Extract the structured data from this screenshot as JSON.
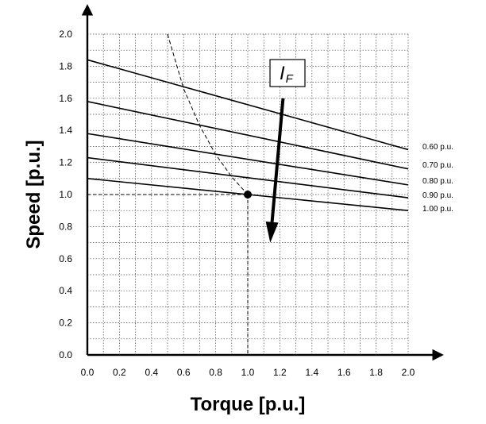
{
  "chart_data": {
    "type": "line",
    "title": "",
    "xlabel": "Torque [p.u.]",
    "ylabel": "Speed [p.u.]",
    "xlim": [
      0,
      2.0
    ],
    "ylim": [
      0,
      2.0
    ],
    "x_ticks": [
      "0.0",
      "0.2",
      "0.4",
      "0.6",
      "0.8",
      "1.0",
      "1.2",
      "1.4",
      "1.6",
      "1.8",
      "2.0"
    ],
    "y_ticks": [
      "0.0",
      "0.2",
      "0.4",
      "0.6",
      "0.8",
      "1.0",
      "1.2",
      "1.4",
      "1.6",
      "1.8",
      "2.0"
    ],
    "grid": true,
    "series": [
      {
        "name": "0.60 p.u.",
        "x": [
          0,
          2.0
        ],
        "y": [
          1.84,
          1.28
        ]
      },
      {
        "name": "0.70 p.u.",
        "x": [
          0,
          2.0
        ],
        "y": [
          1.58,
          1.16
        ]
      },
      {
        "name": "0.80 p.u.",
        "x": [
          0,
          2.0
        ],
        "y": [
          1.38,
          1.06
        ]
      },
      {
        "name": "0.90 p.u.",
        "x": [
          0,
          2.0
        ],
        "y": [
          1.23,
          0.98
        ]
      },
      {
        "name": "1.00 p.u.",
        "x": [
          0,
          2.0
        ],
        "y": [
          1.1,
          0.9
        ]
      }
    ],
    "limit_curve": {
      "x": [
        0.5,
        0.6,
        0.7,
        0.8,
        0.9,
        1.0
      ],
      "y": [
        2.0,
        1.66,
        1.43,
        1.25,
        1.11,
        1.0
      ]
    },
    "operating_point": {
      "x": 1.0,
      "y": 1.0
    },
    "annotation": {
      "symbol": "I",
      "subscript": "F"
    },
    "arrow": {
      "from": [
        1.22,
        1.6
      ],
      "to": [
        1.14,
        0.7
      ]
    }
  }
}
